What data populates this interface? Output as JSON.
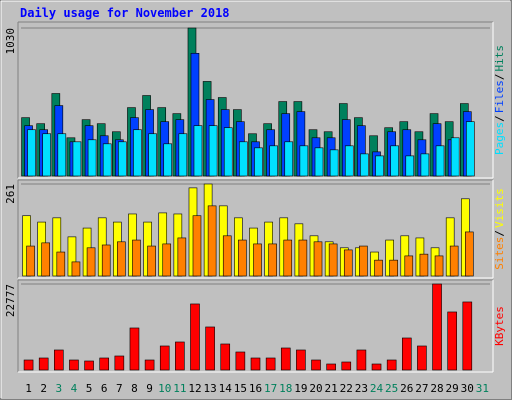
{
  "chart_data": [
    {
      "type": "bar",
      "title": "Daily usage for November 2018",
      "categories": [
        "1",
        "2",
        "3",
        "4",
        "5",
        "6",
        "7",
        "8",
        "9",
        "10",
        "11",
        "12",
        "13",
        "14",
        "15",
        "16",
        "17",
        "18",
        "19",
        "20",
        "21",
        "22",
        "23",
        "24",
        "25",
        "26",
        "27",
        "28",
        "29",
        "30",
        "31"
      ],
      "legend_separator": "/",
      "ylim": [
        0,
        1030
      ],
      "yticks": [
        1030
      ],
      "series": [
        {
          "name": "Hits",
          "color": "#00805c",
          "values": [
            406,
            364,
            574,
            266,
            392,
            364,
            308,
            476,
            560,
            476,
            434,
            1030,
            658,
            546,
            462,
            294,
            364,
            518,
            518,
            322,
            308,
            504,
            406,
            280,
            336,
            378,
            308,
            434,
            378,
            504,
            null
          ]
        },
        {
          "name": "Files",
          "color": "#0040ff",
          "values": [
            350,
            322,
            490,
            238,
            350,
            280,
            252,
            406,
            462,
            378,
            392,
            854,
            532,
            462,
            378,
            238,
            322,
            434,
            448,
            266,
            266,
            392,
            350,
            168,
            308,
            322,
            252,
            364,
            252,
            448,
            null
          ]
        },
        {
          "name": "Pages",
          "color": "#00e0ff",
          "values": [
            322,
            294,
            294,
            238,
            252,
            224,
            238,
            322,
            294,
            224,
            294,
            350,
            350,
            336,
            238,
            196,
            210,
            238,
            210,
            196,
            182,
            210,
            154,
            140,
            210,
            140,
            154,
            210,
            266,
            378,
            null
          ]
        }
      ]
    },
    {
      "type": "bar",
      "categories": [
        "1",
        "2",
        "3",
        "4",
        "5",
        "6",
        "7",
        "8",
        "9",
        "10",
        "11",
        "12",
        "13",
        "14",
        "15",
        "16",
        "17",
        "18",
        "19",
        "20",
        "21",
        "22",
        "23",
        "24",
        "25",
        "26",
        "27",
        "28",
        "29",
        "30",
        "31"
      ],
      "legend_separator": "/",
      "ylim": [
        0,
        261
      ],
      "yticks": [
        261
      ],
      "series": [
        {
          "name": "Visits",
          "color": "#ffff00",
          "values": [
            171,
            153,
            165,
            111,
            136,
            165,
            153,
            176,
            153,
            179,
            176,
            250,
            261,
            199,
            165,
            136,
            153,
            165,
            148,
            114,
            97,
            80,
            80,
            68,
            102,
            114,
            108,
            80,
            165,
            219,
            null
          ]
        },
        {
          "name": "Sites",
          "color": "#ff8000",
          "values": [
            85,
            94,
            68,
            40,
            80,
            88,
            97,
            102,
            85,
            91,
            108,
            171,
            199,
            114,
            102,
            91,
            91,
            102,
            102,
            97,
            91,
            74,
            85,
            45,
            45,
            57,
            62,
            57,
            85,
            125,
            null
          ]
        }
      ]
    },
    {
      "type": "bar",
      "categories": [
        "1",
        "2",
        "3",
        "4",
        "5",
        "6",
        "7",
        "8",
        "9",
        "10",
        "11",
        "12",
        "13",
        "14",
        "15",
        "16",
        "17",
        "18",
        "19",
        "20",
        "21",
        "22",
        "23",
        "24",
        "25",
        "26",
        "27",
        "28",
        "29",
        "30",
        "31"
      ],
      "category_colors": [
        "#000000",
        "#000000",
        "#00805c",
        "#00805c",
        "#000000",
        "#000000",
        "#000000",
        "#000000",
        "#000000",
        "#00805c",
        "#00805c",
        "#000000",
        "#000000",
        "#000000",
        "#000000",
        "#000000",
        "#00805c",
        "#00805c",
        "#000000",
        "#000000",
        "#000000",
        "#000000",
        "#000000",
        "#00805c",
        "#00805c",
        "#000000",
        "#000000",
        "#000000",
        "#000000",
        "#000000",
        "#00805c"
      ],
      "ylim": [
        0,
        22777
      ],
      "yticks": [
        22777
      ],
      "series": [
        {
          "name": "KBytes",
          "color": "#ff0000",
          "values": [
            2650,
            3180,
            5300,
            2650,
            2385,
            3180,
            3710,
            11130,
            2650,
            6360,
            7420,
            17490,
            11395,
            6890,
            4770,
            3180,
            3180,
            5830,
            5300,
            2650,
            1590,
            2120,
            5300,
            1590,
            2650,
            8480,
            6360,
            22777,
            15370,
            18020,
            null
          ]
        }
      ]
    }
  ]
}
